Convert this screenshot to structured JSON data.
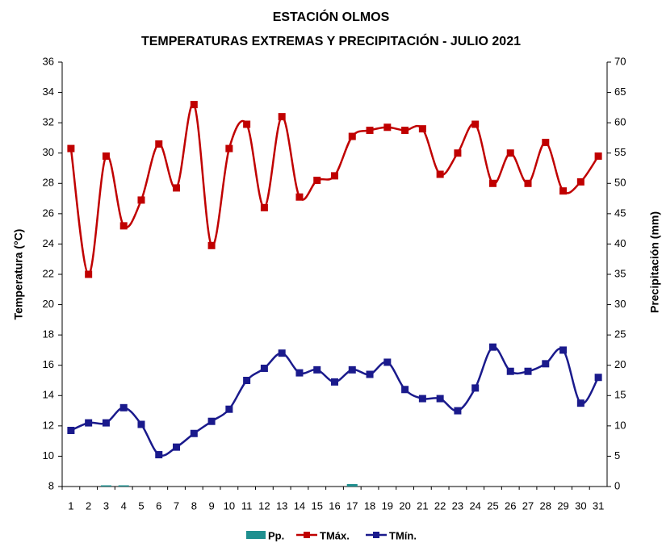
{
  "chart_data": {
    "type": "line",
    "title": "ESTACIÓN OLMOS",
    "subtitle": "TEMPERATURAS  EXTREMAS Y PRECIPITACIÓN - JULIO 2021",
    "y_label": "Temperatura (°C)",
    "y2_label": "Precipitación (mm)",
    "categories": [
      "1",
      "2",
      "3",
      "4",
      "5",
      "6",
      "7",
      "8",
      "9",
      "10",
      "11",
      "12",
      "13",
      "14",
      "15",
      "16",
      "17",
      "18",
      "19",
      "20",
      "21",
      "22",
      "23",
      "24",
      "25",
      "26",
      "27",
      "28",
      "29",
      "30",
      "31"
    ],
    "ylim": [
      8,
      36
    ],
    "yticks": [
      8,
      10,
      12,
      14,
      16,
      18,
      20,
      22,
      24,
      26,
      28,
      30,
      32,
      34,
      36
    ],
    "y2lim": [
      0,
      70
    ],
    "y2ticks": [
      0,
      5,
      10,
      15,
      20,
      25,
      30,
      35,
      40,
      45,
      50,
      55,
      60,
      65,
      70
    ],
    "grid": false,
    "smooth": true,
    "legend": "bottom",
    "series": [
      {
        "name": "Pp.",
        "type": "bar",
        "axis": "y2",
        "color": "#1f8f8f",
        "values": [
          0,
          0,
          0.2,
          0.2,
          0,
          0,
          0,
          0,
          0,
          0,
          0,
          0,
          0,
          0,
          0,
          0,
          0.4,
          0,
          0,
          0,
          0,
          0,
          0,
          0,
          0,
          0,
          0,
          0,
          0,
          0,
          0
        ]
      },
      {
        "name": "TMáx.",
        "type": "line",
        "color": "#c00000",
        "values": [
          30.3,
          22.0,
          29.8,
          25.2,
          26.9,
          30.6,
          27.7,
          33.2,
          23.9,
          30.3,
          31.9,
          26.4,
          32.4,
          27.1,
          28.2,
          28.5,
          31.1,
          31.5,
          31.7,
          31.5,
          31.6,
          28.6,
          30.0,
          31.9,
          28.0,
          30.0,
          28.0,
          30.7,
          27.5,
          28.1,
          29.8
        ]
      },
      {
        "name": "TMín.",
        "type": "line",
        "color": "#1a1a8c",
        "values": [
          11.7,
          12.2,
          12.2,
          13.2,
          12.1,
          10.1,
          10.6,
          11.5,
          12.3,
          13.1,
          15.0,
          15.8,
          16.8,
          15.5,
          15.7,
          14.9,
          15.7,
          15.4,
          16.2,
          14.4,
          13.8,
          13.8,
          13.0,
          14.5,
          17.2,
          15.6,
          15.6,
          16.1,
          17.0,
          13.5,
          15.2
        ]
      }
    ]
  }
}
